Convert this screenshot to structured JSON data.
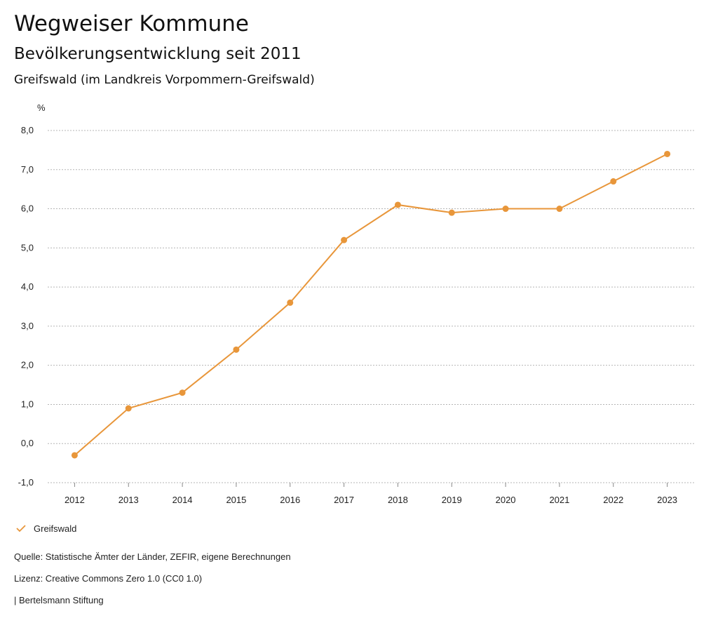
{
  "header": {
    "title": "Wegweiser Kommune",
    "subtitle": "Bevölkerungsentwicklung seit 2011",
    "region": "Greifswald (im Landkreis Vorpommern-Greifswald)"
  },
  "chart_data": {
    "type": "line",
    "ylabel": "%",
    "ylim": [
      -1,
      8
    ],
    "yticks": [
      -1,
      0,
      1,
      2,
      3,
      4,
      5,
      6,
      7,
      8
    ],
    "ytick_labels": [
      "-1,0",
      "0,0",
      "1,0",
      "2,0",
      "3,0",
      "4,0",
      "5,0",
      "6,0",
      "7,0",
      "8,0"
    ],
    "x": [
      "2012",
      "2013",
      "2014",
      "2015",
      "2016",
      "2017",
      "2018",
      "2019",
      "2020",
      "2021",
      "2022",
      "2023"
    ],
    "series": [
      {
        "name": "Greifswald",
        "color": "#E8963A",
        "values": [
          -0.3,
          0.9,
          1.3,
          2.4,
          3.6,
          5.2,
          6.1,
          5.9,
          6.0,
          6.0,
          6.7,
          7.4
        ]
      }
    ],
    "grid": true,
    "legend_position": "bottom-left"
  },
  "footer": {
    "source": "Quelle: Statistische Ämter der Länder, ZEFIR, eigene Berechnungen",
    "license": "Lizenz: Creative Commons Zero 1.0 (CC0 1.0)",
    "publisher": "| Bertelsmann Stiftung"
  }
}
